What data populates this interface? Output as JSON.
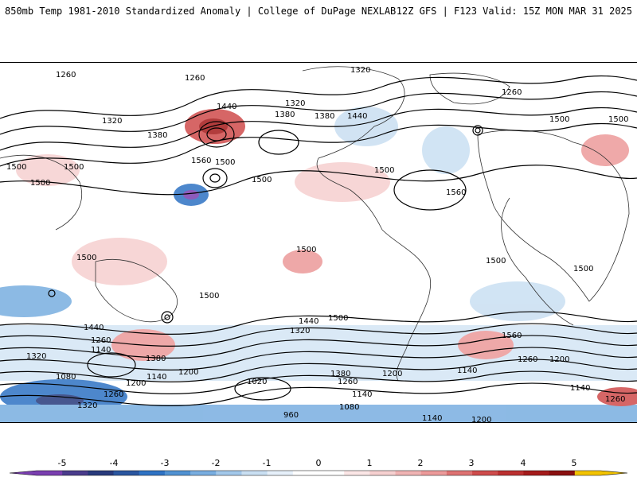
{
  "header": {
    "left": "850mb Temp 1981-2010 Standardized Anomaly | College of DuPage NEXLAB",
    "right": "12Z GFS | F123 Valid: 15Z MON MAR 31 2025"
  },
  "contour_labels": [
    "1260",
    "1260",
    "1320",
    "1320",
    "1320",
    "1380",
    "1380",
    "1380",
    "1440",
    "1440",
    "1500",
    "1500",
    "1500",
    "1500",
    "1560",
    "1560",
    "1500",
    "1500",
    "1500",
    "1500",
    "1500",
    "1500",
    "1500",
    "1440",
    "1320",
    "1260",
    "1140",
    "1080",
    "1200",
    "1140",
    "1200",
    "1260",
    "1320",
    "1380",
    "1440",
    "1380",
    "1320",
    "1200",
    "1260",
    "1140",
    "1080",
    "1020",
    "960",
    "1200",
    "1260",
    "1140",
    "1200",
    "1140",
    "1260",
    "1140",
    "1260",
    "1500",
    "1500",
    "1500",
    "1560"
  ],
  "colorbar": {
    "labels": [
      "-5",
      "-4",
      "-3",
      "-2",
      "-1",
      "0",
      "1",
      "2",
      "3",
      "4",
      "5"
    ],
    "colors": [
      "#7a3fb0",
      "#283a7c",
      "#2f73c4",
      "#79aee0",
      "#c9dff2",
      "#ffffff",
      "#f6d0d0",
      "#ec9a9a",
      "#cf4c4c",
      "#a51b1b",
      "#f2c300"
    ]
  }
}
